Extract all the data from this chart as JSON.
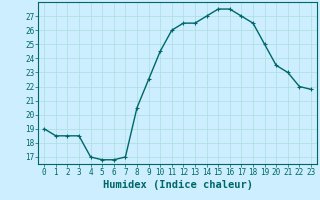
{
  "x": [
    0,
    1,
    2,
    3,
    4,
    5,
    6,
    7,
    8,
    9,
    10,
    11,
    12,
    13,
    14,
    15,
    16,
    17,
    18,
    19,
    20,
    21,
    22,
    23
  ],
  "y": [
    19,
    18.5,
    18.5,
    18.5,
    17,
    16.8,
    16.8,
    17,
    20.5,
    22.5,
    24.5,
    26,
    26.5,
    26.5,
    27,
    27.5,
    27.5,
    27,
    26.5,
    25,
    23.5,
    23,
    22,
    21.8
  ],
  "line_color": "#006666",
  "marker_color": "#006666",
  "bg_color": "#cceeff",
  "grid_color": "#aadddd",
  "xlabel": "Humidex (Indice chaleur)",
  "xlim": [
    -0.5,
    23.5
  ],
  "ylim": [
    16.5,
    28.0
  ],
  "yticks": [
    17,
    18,
    19,
    20,
    21,
    22,
    23,
    24,
    25,
    26,
    27
  ],
  "xticks": [
    0,
    1,
    2,
    3,
    4,
    5,
    6,
    7,
    8,
    9,
    10,
    11,
    12,
    13,
    14,
    15,
    16,
    17,
    18,
    19,
    20,
    21,
    22,
    23
  ],
  "tick_label_fontsize": 5.5,
  "xlabel_fontsize": 7.5,
  "line_width": 1.0,
  "marker_size": 3.5
}
